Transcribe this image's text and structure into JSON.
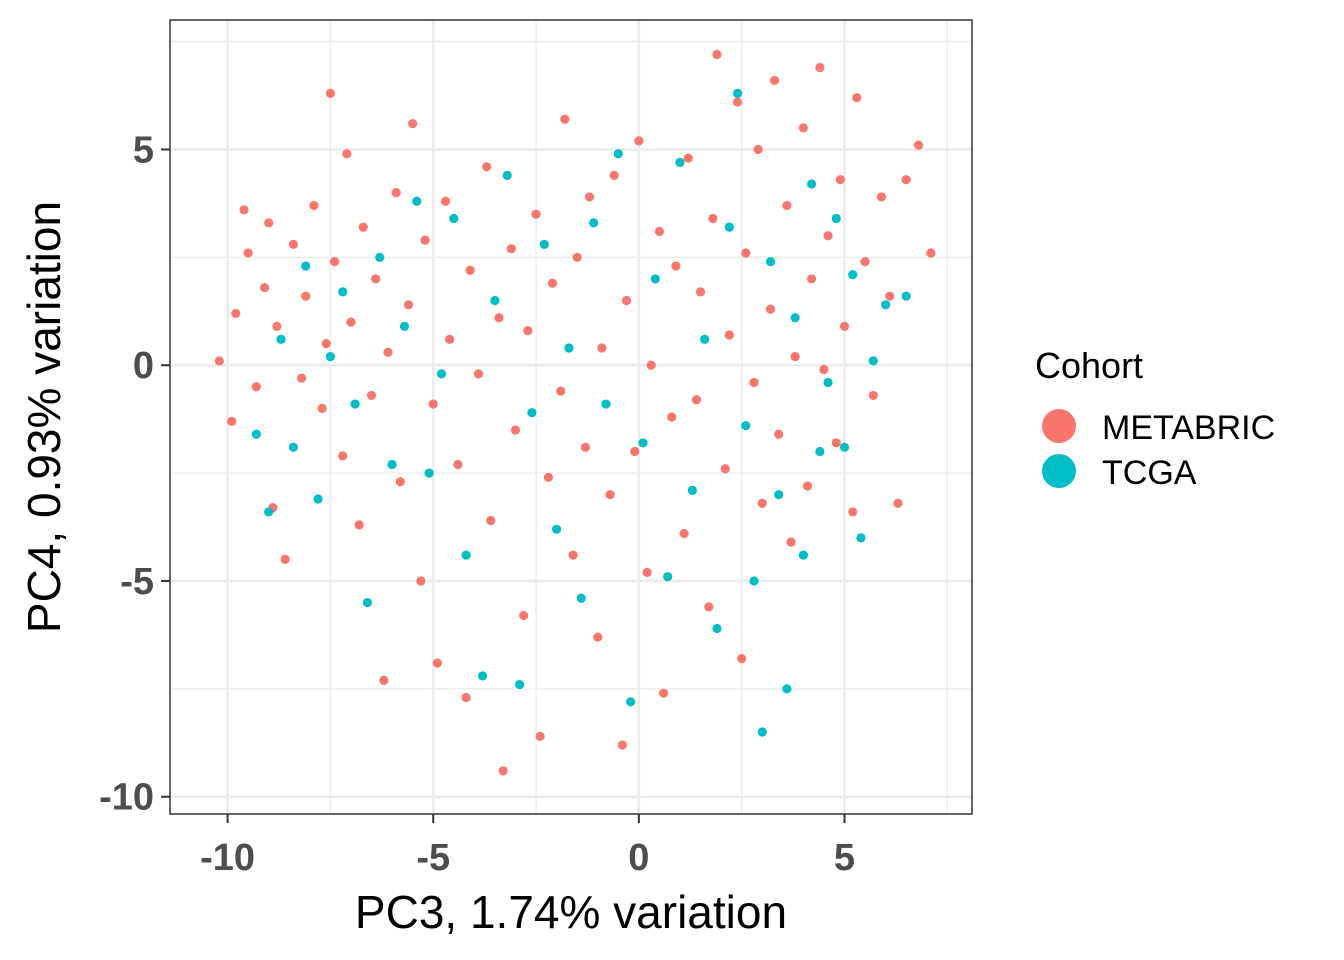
{
  "chart_data": {
    "type": "scatter",
    "title": "",
    "xlabel": "PC3, 1.74% variation",
    "ylabel": "PC4, 0.93% variation",
    "xlim": [
      -11.4,
      8.1
    ],
    "ylim": [
      -10.4,
      8.0
    ],
    "xticks": [
      -10,
      -5,
      0,
      5
    ],
    "xtick_labels": [
      "-10",
      "-5",
      "0",
      "5"
    ],
    "yticks": [
      -10,
      -5,
      0,
      5
    ],
    "ytick_labels": [
      "-10",
      "-5",
      "0",
      "5"
    ],
    "grid": true,
    "legend": {
      "title": "Cohort",
      "position": "right"
    },
    "series": [
      {
        "name": "METABRIC",
        "color": "#F8766D",
        "points": [
          [
            -10.2,
            0.1
          ],
          [
            -9.9,
            -1.3
          ],
          [
            -9.8,
            1.2
          ],
          [
            -9.6,
            3.6
          ],
          [
            -9.5,
            2.6
          ],
          [
            -9.3,
            -0.5
          ],
          [
            -9.1,
            1.8
          ],
          [
            -9.0,
            3.3
          ],
          [
            -8.9,
            -3.3
          ],
          [
            -8.8,
            0.9
          ],
          [
            -8.6,
            -4.5
          ],
          [
            -8.4,
            2.8
          ],
          [
            -8.2,
            -0.3
          ],
          [
            -8.1,
            1.6
          ],
          [
            -7.9,
            3.7
          ],
          [
            -7.7,
            -1.0
          ],
          [
            -7.6,
            0.5
          ],
          [
            -7.5,
            6.3
          ],
          [
            -7.4,
            2.4
          ],
          [
            -7.2,
            -2.1
          ],
          [
            -7.1,
            4.9
          ],
          [
            -7.0,
            1.0
          ],
          [
            -6.8,
            -3.7
          ],
          [
            -6.7,
            3.2
          ],
          [
            -6.5,
            -0.7
          ],
          [
            -6.4,
            2.0
          ],
          [
            -6.2,
            -7.3
          ],
          [
            -6.1,
            0.3
          ],
          [
            -5.9,
            4.0
          ],
          [
            -5.8,
            -2.7
          ],
          [
            -5.6,
            1.4
          ],
          [
            -5.5,
            5.6
          ],
          [
            -5.3,
            -5.0
          ],
          [
            -5.2,
            2.9
          ],
          [
            -5.0,
            -0.9
          ],
          [
            -4.9,
            -6.9
          ],
          [
            -4.7,
            3.8
          ],
          [
            -4.6,
            0.6
          ],
          [
            -4.4,
            -2.3
          ],
          [
            -4.2,
            -7.7
          ],
          [
            -4.1,
            2.2
          ],
          [
            -3.9,
            -0.2
          ],
          [
            -3.7,
            4.6
          ],
          [
            -3.6,
            -3.6
          ],
          [
            -3.4,
            1.1
          ],
          [
            -3.3,
            -9.4
          ],
          [
            -3.1,
            2.7
          ],
          [
            -3.0,
            -1.5
          ],
          [
            -2.8,
            -5.8
          ],
          [
            -2.7,
            0.8
          ],
          [
            -2.5,
            3.5
          ],
          [
            -2.4,
            -8.6
          ],
          [
            -2.2,
            -2.6
          ],
          [
            -2.1,
            1.9
          ],
          [
            -1.9,
            -0.6
          ],
          [
            -1.8,
            5.7
          ],
          [
            -1.6,
            -4.4
          ],
          [
            -1.5,
            2.5
          ],
          [
            -1.3,
            -1.9
          ],
          [
            -1.2,
            3.9
          ],
          [
            -1.0,
            -6.3
          ],
          [
            -0.9,
            0.4
          ],
          [
            -0.7,
            -3.0
          ],
          [
            -0.6,
            4.4
          ],
          [
            -0.4,
            -8.8
          ],
          [
            -0.3,
            1.5
          ],
          [
            -0.1,
            -2.0
          ],
          [
            0.0,
            5.2
          ],
          [
            0.2,
            -4.8
          ],
          [
            0.3,
            0.0
          ],
          [
            0.5,
            3.1
          ],
          [
            0.6,
            -7.6
          ],
          [
            0.8,
            -1.2
          ],
          [
            0.9,
            2.3
          ],
          [
            1.1,
            -3.9
          ],
          [
            1.2,
            4.8
          ],
          [
            1.4,
            -0.8
          ],
          [
            1.5,
            1.7
          ],
          [
            1.7,
            -5.6
          ],
          [
            1.8,
            3.4
          ],
          [
            1.9,
            7.2
          ],
          [
            2.1,
            -2.4
          ],
          [
            2.2,
            0.7
          ],
          [
            2.4,
            6.1
          ],
          [
            2.5,
            -6.8
          ],
          [
            2.6,
            2.6
          ],
          [
            2.8,
            -0.4
          ],
          [
            2.9,
            5.0
          ],
          [
            3.0,
            -3.2
          ],
          [
            3.2,
            1.3
          ],
          [
            3.3,
            6.6
          ],
          [
            3.4,
            -1.6
          ],
          [
            3.6,
            3.7
          ],
          [
            3.7,
            -4.1
          ],
          [
            3.8,
            0.2
          ],
          [
            4.0,
            5.5
          ],
          [
            4.1,
            -2.8
          ],
          [
            4.2,
            2.0
          ],
          [
            4.4,
            6.9
          ],
          [
            4.5,
            -0.1
          ],
          [
            4.6,
            3.0
          ],
          [
            4.8,
            -1.8
          ],
          [
            4.9,
            4.3
          ],
          [
            5.0,
            0.9
          ],
          [
            5.2,
            -3.4
          ],
          [
            5.3,
            6.2
          ],
          [
            5.5,
            2.4
          ],
          [
            5.7,
            -0.7
          ],
          [
            5.9,
            3.9
          ],
          [
            6.1,
            1.6
          ],
          [
            6.3,
            -3.2
          ],
          [
            6.5,
            4.3
          ],
          [
            6.8,
            5.1
          ],
          [
            7.1,
            2.6
          ]
        ]
      },
      {
        "name": "TCGA",
        "color": "#00BFC4",
        "points": [
          [
            -9.3,
            -1.6
          ],
          [
            -9.0,
            -3.4
          ],
          [
            -8.7,
            0.6
          ],
          [
            -8.4,
            -1.9
          ],
          [
            -8.1,
            2.3
          ],
          [
            -7.8,
            -3.1
          ],
          [
            -7.5,
            0.2
          ],
          [
            -7.2,
            1.7
          ],
          [
            -6.9,
            -0.9
          ],
          [
            -6.6,
            -5.5
          ],
          [
            -6.3,
            2.5
          ],
          [
            -6.0,
            -2.3
          ],
          [
            -5.7,
            0.9
          ],
          [
            -5.4,
            3.8
          ],
          [
            -5.1,
            -2.5
          ],
          [
            -4.8,
            -0.2
          ],
          [
            -4.5,
            3.4
          ],
          [
            -4.2,
            -4.4
          ],
          [
            -3.8,
            -7.2
          ],
          [
            -3.5,
            1.5
          ],
          [
            -3.2,
            4.4
          ],
          [
            -2.9,
            -7.4
          ],
          [
            -2.6,
            -1.1
          ],
          [
            -2.3,
            2.8
          ],
          [
            -2.0,
            -3.8
          ],
          [
            -1.7,
            0.4
          ],
          [
            -1.4,
            -5.4
          ],
          [
            -1.1,
            3.3
          ],
          [
            -0.8,
            -0.9
          ],
          [
            -0.5,
            4.9
          ],
          [
            -0.2,
            -7.8
          ],
          [
            0.1,
            -1.8
          ],
          [
            0.4,
            2.0
          ],
          [
            0.7,
            -4.9
          ],
          [
            1.0,
            4.7
          ],
          [
            1.3,
            -2.9
          ],
          [
            1.6,
            0.6
          ],
          [
            1.9,
            -6.1
          ],
          [
            2.2,
            3.2
          ],
          [
            2.4,
            6.3
          ],
          [
            2.6,
            -1.4
          ],
          [
            2.8,
            -5.0
          ],
          [
            3.0,
            -8.5
          ],
          [
            3.2,
            2.4
          ],
          [
            3.4,
            -3.0
          ],
          [
            3.6,
            -7.5
          ],
          [
            3.8,
            1.1
          ],
          [
            4.0,
            -4.4
          ],
          [
            4.2,
            4.2
          ],
          [
            4.4,
            -2.0
          ],
          [
            4.6,
            -0.4
          ],
          [
            4.8,
            3.4
          ],
          [
            5.0,
            -1.9
          ],
          [
            5.2,
            2.1
          ],
          [
            5.4,
            -4.0
          ],
          [
            5.7,
            0.1
          ],
          [
            6.0,
            1.4
          ],
          [
            6.5,
            1.6
          ]
        ]
      }
    ]
  }
}
